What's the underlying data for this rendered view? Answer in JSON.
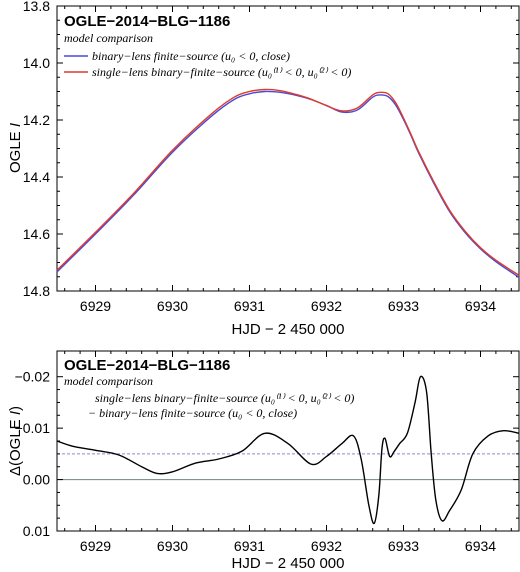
{
  "colors": {
    "binary": "#4a4ad8",
    "single": "#e03a2a",
    "diff": "#000000",
    "zero_line": "#6b8a7f",
    "ref_line": "#8a8ad8",
    "frame": "#000000"
  },
  "chart_data": [
    {
      "type": "line",
      "title": "OGLE−2014−BLG−1186",
      "subtitle": "model comparison",
      "xlabel": "HJD − 2 450 000",
      "ylabel": "OGLE I",
      "ylabel_parts": [
        "OGLE ",
        "I"
      ],
      "xlim": [
        6928.5,
        6934.5
      ],
      "ylim": [
        14.8,
        13.8
      ],
      "y_inverted": true,
      "x_ticks": [
        6929,
        6930,
        6931,
        6932,
        6933,
        6934
      ],
      "x_tick_labels": [
        "6929",
        "6930",
        "6931",
        "6932",
        "6933",
        "6934"
      ],
      "y_ticks": [
        13.8,
        14.0,
        14.2,
        14.4,
        14.6,
        14.8
      ],
      "y_tick_labels": [
        "13.8",
        "14.0",
        "14.2",
        "14.4",
        "14.6",
        "14.8"
      ],
      "legend": [
        {
          "label": "binary−lens finite−source (u₀ < 0, close)",
          "color": "binary"
        },
        {
          "label": "single−lens binary−finite−source (u₀⁽¹⁾ < 0, u₀⁽²⁾ < 0)",
          "color": "single"
        }
      ],
      "series": [
        {
          "name": "binary−lens finite−source (u₀ < 0, close)",
          "color": "binary",
          "x": [
            6928.5,
            6929.0,
            6929.5,
            6930.0,
            6930.5,
            6930.8,
            6931.0,
            6931.2,
            6931.4,
            6931.6,
            6931.8,
            6932.0,
            6932.2,
            6932.4,
            6932.6,
            6932.7,
            6932.8,
            6932.9,
            6933.0,
            6933.1,
            6933.2,
            6933.4,
            6933.6,
            6933.8,
            6934.0,
            6934.2,
            6934.5
          ],
          "y": [
            14.733,
            14.6,
            14.462,
            14.313,
            14.188,
            14.128,
            14.108,
            14.1,
            14.103,
            14.113,
            14.128,
            14.149,
            14.172,
            14.165,
            14.12,
            14.112,
            14.118,
            14.148,
            14.198,
            14.256,
            14.318,
            14.425,
            14.522,
            14.595,
            14.652,
            14.697,
            14.752
          ]
        },
        {
          "name": "single−lens binary−finite−source (u₀⁽¹⁾ < 0, u₀⁽²⁾ < 0)",
          "color": "single",
          "x": [
            6928.5,
            6929.0,
            6929.5,
            6930.0,
            6930.5,
            6930.8,
            6931.0,
            6931.2,
            6931.4,
            6931.6,
            6931.8,
            6932.0,
            6932.2,
            6932.4,
            6932.6,
            6932.7,
            6932.8,
            6932.9,
            6933.0,
            6933.1,
            6933.2,
            6933.4,
            6933.6,
            6933.8,
            6934.0,
            6934.2,
            6934.5
          ],
          "y": [
            14.727,
            14.594,
            14.456,
            14.306,
            14.18,
            14.12,
            14.1,
            14.093,
            14.097,
            14.11,
            14.127,
            14.15,
            14.168,
            14.158,
            14.112,
            14.103,
            14.108,
            14.14,
            14.193,
            14.252,
            14.313,
            14.42,
            14.517,
            14.59,
            14.648,
            14.692,
            14.745
          ]
        }
      ]
    },
    {
      "type": "line",
      "title": "OGLE−2014−BLG−1186",
      "subtitle": "model comparison",
      "xlabel": "HJD − 2 450 000",
      "ylabel": "Δ(OGLE I)",
      "ylabel_parts": [
        "Δ(OGLE ",
        "I",
        ")"
      ],
      "xlim": [
        6928.5,
        6934.5
      ],
      "ylim": [
        0.01,
        -0.025
      ],
      "y_inverted": true,
      "x_ticks": [
        6929,
        6930,
        6931,
        6932,
        6933,
        6934
      ],
      "x_tick_labels": [
        "6929",
        "6930",
        "6931",
        "6932",
        "6933",
        "6934"
      ],
      "y_ticks": [
        -0.02,
        -0.01,
        0.0,
        0.01
      ],
      "y_tick_labels": [
        "−0.02",
        "−0.01",
        "0.00",
        "0.01"
      ],
      "legend": [
        {
          "label": "single−lens binary−finite−source (u₀⁽¹⁾ < 0, u₀⁽²⁾ < 0)"
        },
        {
          "label": "− binary−lens finite−source (u₀ < 0, close)"
        }
      ],
      "reference_lines": [
        {
          "y": 0.0,
          "style": "solid",
          "color": "zero_line"
        },
        {
          "y": -0.005,
          "style": "dashed",
          "color": "ref_line"
        }
      ],
      "series": [
        {
          "name": "difference",
          "color": "diff",
          "x": [
            6928.5,
            6928.7,
            6929.0,
            6929.3,
            6929.6,
            6929.8,
            6930.0,
            6930.3,
            6930.6,
            6930.9,
            6931.2,
            6931.5,
            6931.8,
            6932.0,
            6932.2,
            6932.35,
            6932.45,
            6932.55,
            6932.62,
            6932.68,
            6932.72,
            6932.76,
            6932.82,
            6932.88,
            6932.95,
            6933.05,
            6933.15,
            6933.22,
            6933.3,
            6933.36,
            6933.42,
            6933.5,
            6933.6,
            6933.75,
            6933.9,
            6934.1,
            6934.3,
            6934.5
          ],
          "y": [
            -0.0075,
            -0.0065,
            -0.0057,
            -0.0048,
            -0.0025,
            -0.0012,
            -0.0015,
            -0.0032,
            -0.004,
            -0.0055,
            -0.009,
            -0.007,
            -0.003,
            -0.0045,
            -0.007,
            -0.0085,
            -0.004,
            0.005,
            0.0085,
            0.003,
            -0.006,
            -0.008,
            -0.0045,
            -0.0055,
            -0.007,
            -0.009,
            -0.015,
            -0.02,
            -0.017,
            -0.005,
            0.004,
            0.008,
            0.006,
            0.002,
            -0.005,
            -0.0085,
            -0.0095,
            -0.009
          ]
        }
      ]
    }
  ]
}
